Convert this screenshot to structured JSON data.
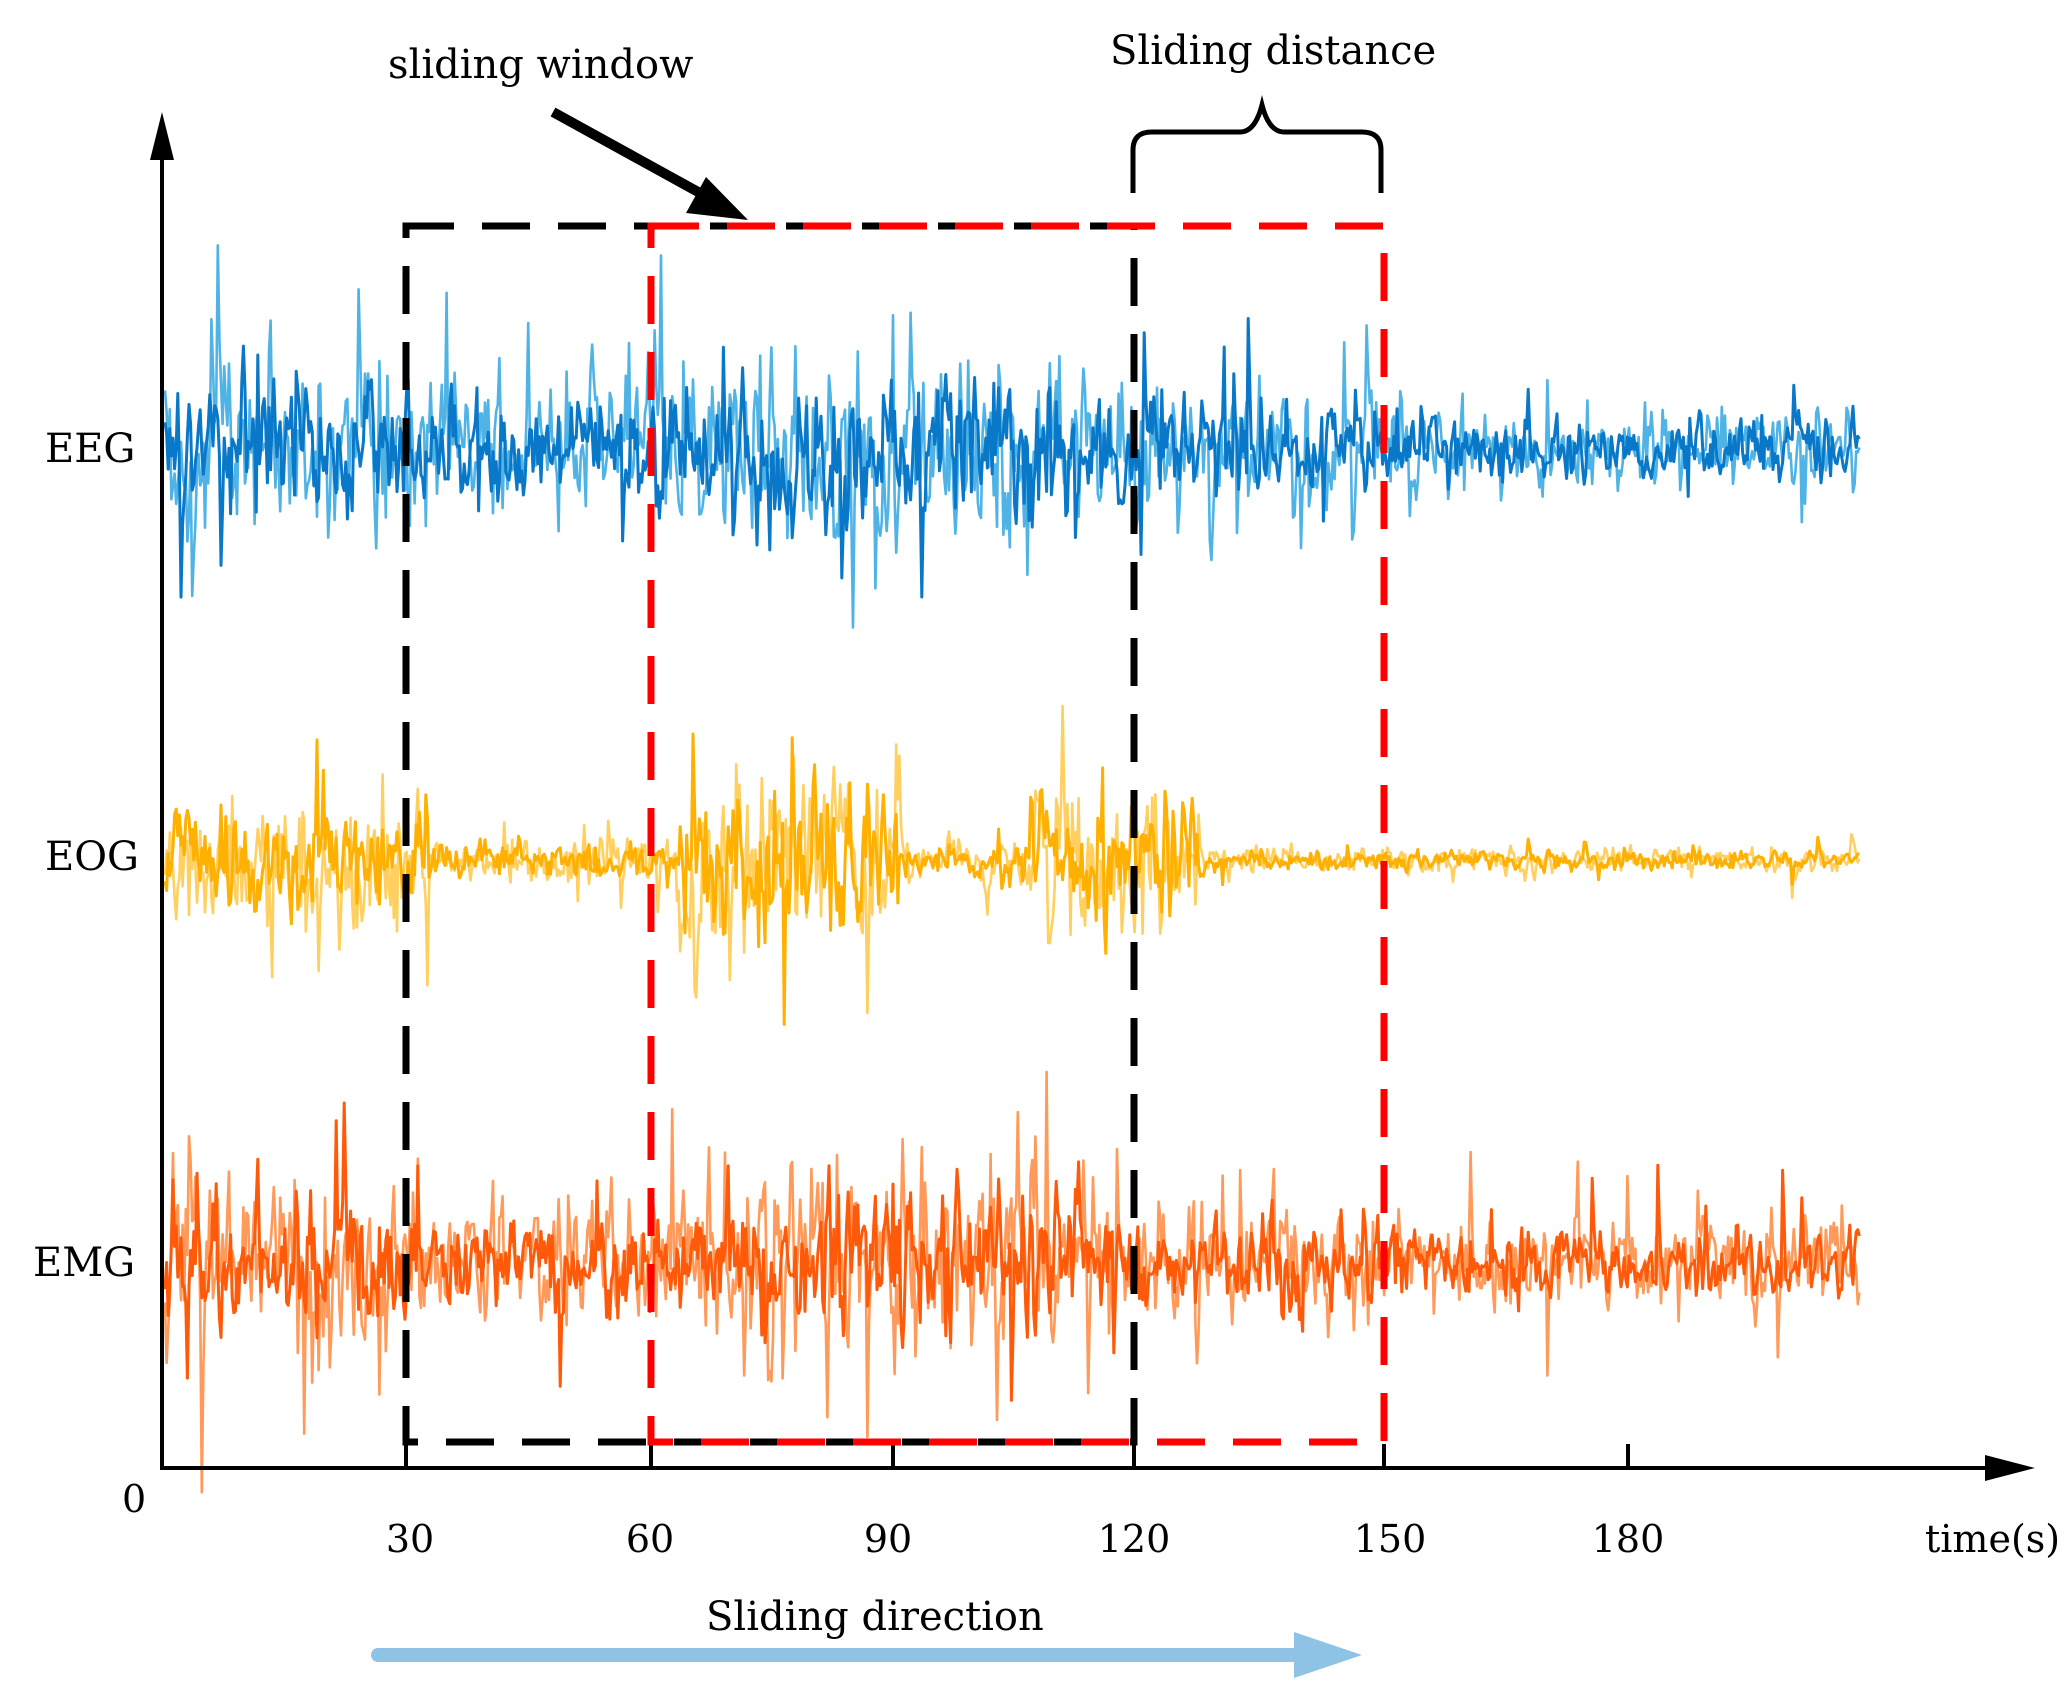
{
  "axis": {
    "origin_label": "0",
    "x_label": "time(s)",
    "ticks": [
      "30",
      "60",
      "90",
      "120",
      "150",
      "180"
    ]
  },
  "signals": [
    {
      "name": "EEG",
      "color": "#0a78c8",
      "light_color": "#4fb3e6",
      "amplitude": 1.0
    },
    {
      "name": "EOG",
      "color": "#ffb000",
      "light_color": "#ffd060",
      "amplitude": 1.0
    },
    {
      "name": "EMG",
      "color": "#ff5a0a",
      "light_color": "#ff9a5a",
      "amplitude": 1.0
    }
  ],
  "windows": {
    "first": {
      "start": 30,
      "end": 120,
      "color": "#000000"
    },
    "second": {
      "start": 60,
      "end": 150,
      "color": "#ff0000"
    }
  },
  "annotations": {
    "sliding_window": "sliding window",
    "sliding_distance": "Sliding distance",
    "sliding_direction": "Sliding direction",
    "direction_arrow_color": "#8ec3e6"
  }
}
